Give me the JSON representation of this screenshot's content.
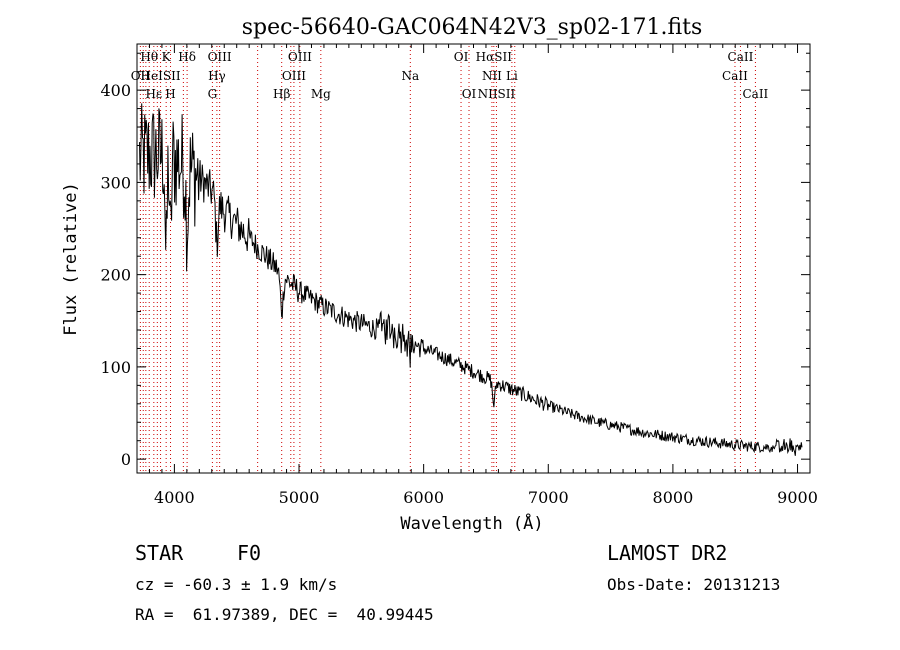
{
  "chart_data": {
    "type": "line",
    "title": "spec-56640-GAC064N42V3_sp02-171.fits",
    "xlabel": "Wavelength (Å)",
    "ylabel": "Flux (relative)",
    "xlim": [
      3700,
      9100
    ],
    "ylim": [
      -15,
      450
    ],
    "xticks": [
      4000,
      5000,
      6000,
      7000,
      8000,
      9000
    ],
    "yticks": [
      0,
      100,
      200,
      300,
      400
    ],
    "grid": false,
    "series_color": "#000000",
    "line_marker_color": "#cc0000",
    "continuum": [
      [
        3720,
        325
      ],
      [
        3800,
        330
      ],
      [
        3900,
        330
      ],
      [
        4000,
        325
      ],
      [
        4100,
        318
      ],
      [
        4200,
        305
      ],
      [
        4300,
        290
      ],
      [
        4400,
        268
      ],
      [
        4500,
        255
      ],
      [
        4600,
        240
      ],
      [
        4700,
        225
      ],
      [
        4800,
        210
      ],
      [
        4900,
        195
      ],
      [
        5000,
        182
      ],
      [
        5200,
        165
      ],
      [
        5400,
        152
      ],
      [
        5600,
        142
      ],
      [
        5800,
        132
      ],
      [
        6000,
        120
      ],
      [
        6200,
        108
      ],
      [
        6400,
        95
      ],
      [
        6600,
        82
      ],
      [
        6800,
        70
      ],
      [
        7000,
        58
      ],
      [
        7200,
        48
      ],
      [
        7400,
        40
      ],
      [
        7600,
        34
      ],
      [
        7800,
        28
      ],
      [
        8000,
        24
      ],
      [
        8200,
        20
      ],
      [
        8400,
        17
      ],
      [
        8600,
        14
      ],
      [
        8800,
        13
      ],
      [
        9000,
        12
      ]
    ],
    "line_markers": [
      {
        "label": "Hθ",
        "x": 3798,
        "row": 0
      },
      {
        "label": "K",
        "x": 3934,
        "row": 0
      },
      {
        "label": "Hδ",
        "x": 4102,
        "row": 0
      },
      {
        "label": "OIII",
        "x": 4363,
        "row": 0
      },
      {
        "label": "OIII",
        "x": 5007,
        "row": 0
      },
      {
        "label": "OI",
        "x": 6300,
        "row": 0
      },
      {
        "label": "HαSII",
        "x": 6563,
        "row": 0
      },
      {
        "label": "CaII",
        "x": 8542,
        "row": 0
      },
      {
        "label": "OII",
        "x": 3727,
        "row": 1
      },
      {
        "label": "HeISII",
        "x": 3889,
        "row": 1
      },
      {
        "label": "Hγ",
        "x": 4341,
        "row": 1
      },
      {
        "label": "OIII",
        "x": 4959,
        "row": 1
      },
      {
        "label": "Na",
        "x": 5893,
        "row": 1
      },
      {
        "label": "NII",
        "x": 6548,
        "row": 1
      },
      {
        "label": "Li",
        "x": 6708,
        "row": 1
      },
      {
        "label": "CaII",
        "x": 8498,
        "row": 1
      },
      {
        "label": "Hε",
        "x": 3835,
        "row": 2
      },
      {
        "label": "H",
        "x": 3969,
        "row": 2
      },
      {
        "label": "G",
        "x": 4305,
        "row": 2
      },
      {
        "label": "Hβ",
        "x": 4861,
        "row": 2
      },
      {
        "label": "Mg",
        "x": 5175,
        "row": 2
      },
      {
        "label": "OI",
        "x": 6364,
        "row": 2
      },
      {
        "label": "NIISII",
        "x": 6584,
        "row": 2
      },
      {
        "label": "CaII",
        "x": 8662,
        "row": 2
      }
    ],
    "extra_marker_lines": [
      3750,
      3771,
      3863,
      4072,
      4668,
      4934,
      6731
    ]
  },
  "info": {
    "object_class": "STAR",
    "subclass": "F0",
    "survey": "LAMOST DR2",
    "redshift_text": "cz = -60.3 ± 1.9 km/s",
    "obs_date_text": "Obs-Date: 20131213",
    "coords_text": "RA =  61.97389, DEC =  40.99445"
  }
}
